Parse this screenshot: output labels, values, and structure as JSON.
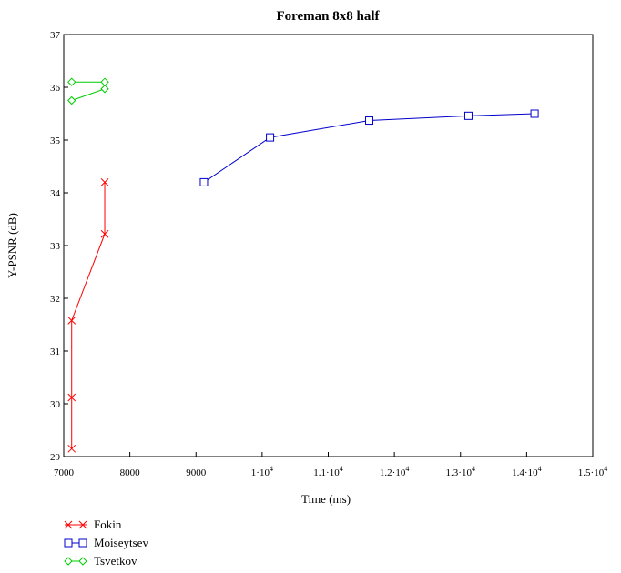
{
  "chart_data": {
    "type": "line",
    "title": "Foreman 8x8 half",
    "xlabel": "Time (ms)",
    "ylabel": "Y-PSNR (dB)",
    "xlim": [
      7000,
      15000
    ],
    "ylim": [
      29,
      37
    ],
    "x_ticks": [
      {
        "value": 7000,
        "base": "7000",
        "exp": ""
      },
      {
        "value": 8000,
        "base": "8000",
        "exp": ""
      },
      {
        "value": 9000,
        "base": "9000",
        "exp": ""
      },
      {
        "value": 10000,
        "base": "1·10",
        "exp": "4"
      },
      {
        "value": 11000,
        "base": "1.1·10",
        "exp": "4"
      },
      {
        "value": 12000,
        "base": "1.2·10",
        "exp": "4"
      },
      {
        "value": 13000,
        "base": "1.3·10",
        "exp": "4"
      },
      {
        "value": 14000,
        "base": "1.4·10",
        "exp": "4"
      },
      {
        "value": 15000,
        "base": "1.5·10",
        "exp": "4"
      }
    ],
    "y_ticks": [
      29,
      30,
      31,
      32,
      33,
      34,
      35,
      36,
      37
    ],
    "grid": false,
    "legend_position": "bottom-left",
    "series": [
      {
        "name": "Fokin",
        "color": "#ff0000",
        "marker": "x",
        "x": [
          7620,
          7620,
          7120,
          7120,
          7120
        ],
        "y": [
          34.2,
          33.22,
          31.58,
          30.12,
          29.15
        ]
      },
      {
        "name": "Moiseytsev",
        "color": "#0000cc",
        "marker": "square",
        "x": [
          9120,
          10120,
          11620,
          13120,
          14120
        ],
        "y": [
          34.2,
          35.05,
          35.37,
          35.46,
          35.5
        ]
      },
      {
        "name": "Tsvetkov",
        "color": "#00cc00",
        "marker": "diamond",
        "x": [
          7120,
          7620,
          7620,
          7120
        ],
        "y": [
          36.1,
          36.1,
          35.97,
          35.75
        ]
      }
    ]
  }
}
